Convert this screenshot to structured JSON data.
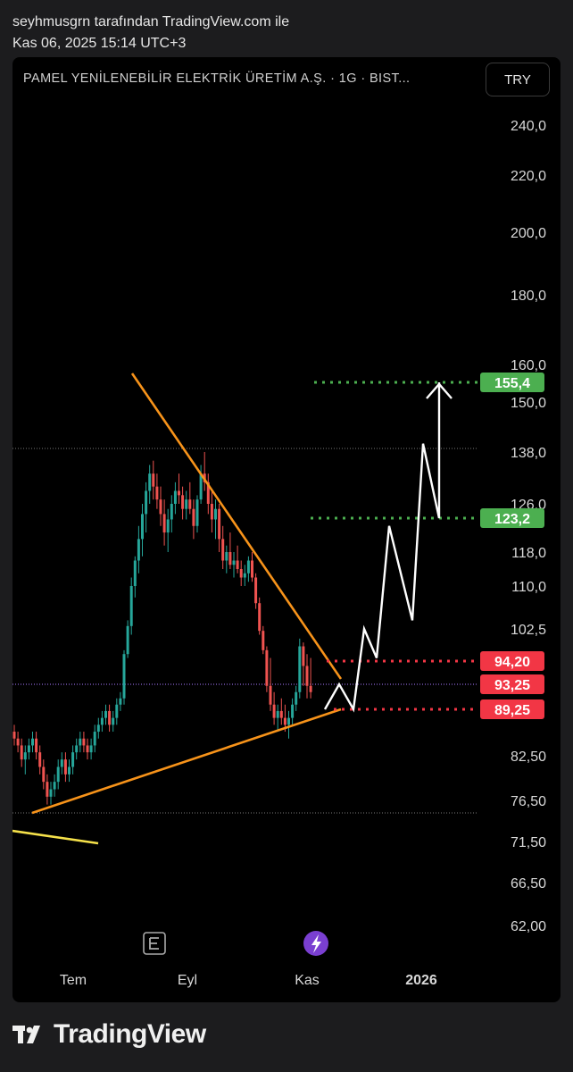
{
  "header": {
    "line1": "seyhmusgrn tarafından TradingView.com ile",
    "line2": "Kas 06, 2025 15:14 UTC+3"
  },
  "symbol_title": "PAMEL YENİLENEBİLİR ELEKTRİK ÜRETİM A.Ş. · 1G · BIST...",
  "currency": "TRY",
  "brand": "TradingView",
  "colors": {
    "background": "#000000",
    "up": "#26a69a",
    "down": "#ef5350",
    "trend": "#f7931a",
    "trend_low": "#f5e14a",
    "target": "#4caf50",
    "support": "#f23645",
    "projection": "#ffffff"
  },
  "chart_data": {
    "type": "candlestick",
    "interval": "1G",
    "x_ticks": [
      "Tem",
      "Eyl",
      "Kas",
      "2026"
    ],
    "y_ticks": [
      "240,0",
      "220,0",
      "200,0",
      "180,0",
      "160,0",
      "150,0",
      "138,0",
      "126,0",
      "118,0",
      "110,0",
      "102,5",
      "82,50",
      "76,50",
      "71,50",
      "66,50",
      "62,00"
    ],
    "price_labels": [
      {
        "value": 155.4,
        "label": "155,4",
        "color": "#4caf50"
      },
      {
        "value": 123.2,
        "label": "123,2",
        "color": "#4caf50"
      },
      {
        "value": 94.2,
        "label": "94,20",
        "color": "#f23645"
      },
      {
        "value": 93.25,
        "label": "93,25",
        "color": "#f23645"
      },
      {
        "value": 89.25,
        "label": "89,25",
        "color": "#f23645"
      }
    ],
    "ohlc_approx": [
      [
        86,
        87,
        84,
        85
      ],
      [
        85,
        86,
        83,
        84
      ],
      [
        84,
        85,
        81,
        82
      ],
      [
        82,
        84,
        80,
        83
      ],
      [
        83,
        85,
        82,
        84
      ],
      [
        84,
        86,
        83,
        85
      ],
      [
        85,
        86,
        82,
        83
      ],
      [
        83,
        84,
        80,
        81
      ],
      [
        81,
        82,
        78,
        79
      ],
      [
        79,
        80,
        76,
        77
      ],
      [
        77,
        79,
        76,
        78
      ],
      [
        78,
        80,
        77,
        79
      ],
      [
        79,
        82,
        78,
        81
      ],
      [
        81,
        83,
        80,
        82
      ],
      [
        82,
        83,
        79,
        80
      ],
      [
        80,
        82,
        79,
        81
      ],
      [
        81,
        84,
        80,
        83
      ],
      [
        83,
        85,
        82,
        84
      ],
      [
        84,
        86,
        83,
        85
      ],
      [
        85,
        86,
        83,
        84
      ],
      [
        84,
        85,
        82,
        83
      ],
      [
        83,
        85,
        82,
        84
      ],
      [
        84,
        87,
        83,
        86
      ],
      [
        86,
        88,
        85,
        87
      ],
      [
        87,
        89,
        86,
        88
      ],
      [
        88,
        90,
        87,
        89
      ],
      [
        89,
        90,
        86,
        87
      ],
      [
        87,
        89,
        86,
        88
      ],
      [
        88,
        91,
        87,
        90
      ],
      [
        90,
        92,
        89,
        91
      ],
      [
        91,
        97,
        90,
        96
      ],
      [
        96,
        104,
        95,
        103
      ],
      [
        103,
        112,
        101,
        110
      ],
      [
        110,
        117,
        108,
        116
      ],
      [
        116,
        122,
        113,
        120
      ],
      [
        120,
        126,
        117,
        124
      ],
      [
        124,
        131,
        121,
        129
      ],
      [
        129,
        135,
        126,
        133
      ],
      [
        133,
        136,
        127,
        130
      ],
      [
        130,
        133,
        125,
        127
      ],
      [
        127,
        130,
        122,
        124
      ],
      [
        124,
        127,
        119,
        121
      ],
      [
        121,
        125,
        118,
        123
      ],
      [
        123,
        128,
        121,
        126
      ],
      [
        126,
        131,
        124,
        129
      ],
      [
        129,
        133,
        126,
        128
      ],
      [
        128,
        130,
        123,
        125
      ],
      [
        125,
        129,
        123,
        127
      ],
      [
        127,
        131,
        124,
        125
      ],
      [
        125,
        127,
        120,
        122
      ],
      [
        122,
        128,
        121,
        127
      ],
      [
        127,
        135,
        126,
        133
      ],
      [
        133,
        138,
        129,
        131
      ],
      [
        131,
        133,
        124,
        126
      ],
      [
        126,
        129,
        121,
        123
      ],
      [
        123,
        127,
        120,
        125
      ],
      [
        125,
        126,
        118,
        120
      ],
      [
        120,
        122,
        114,
        116
      ],
      [
        116,
        119,
        113,
        118
      ],
      [
        118,
        121,
        114,
        115
      ],
      [
        115,
        118,
        112,
        116
      ],
      [
        116,
        119,
        113,
        114
      ],
      [
        114,
        116,
        110,
        112
      ],
      [
        112,
        115,
        110,
        113
      ],
      [
        113,
        117,
        111,
        116
      ],
      [
        116,
        118,
        111,
        112
      ],
      [
        112,
        113,
        106,
        107
      ],
      [
        107,
        108,
        101,
        102
      ],
      [
        102,
        103,
        96,
        97
      ],
      [
        97,
        98,
        92,
        93
      ],
      [
        93,
        95,
        89,
        90
      ],
      [
        90,
        92,
        87,
        88
      ],
      [
        88,
        90,
        86,
        89
      ],
      [
        89,
        91,
        87,
        88
      ],
      [
        88,
        90,
        86,
        87
      ],
      [
        87,
        89,
        85,
        88
      ],
      [
        88,
        91,
        87,
        90
      ],
      [
        90,
        93,
        89,
        92
      ],
      [
        92,
        100,
        91,
        98
      ],
      [
        98,
        99,
        93,
        94
      ],
      [
        94,
        96,
        91,
        93
      ],
      [
        93,
        95,
        91,
        92
      ]
    ],
    "trendlines": [
      {
        "name": "descending-resistance",
        "from": [
          "2025-08-07",
          147
        ],
        "to": [
          "2025-11-10",
          93.25
        ]
      },
      {
        "name": "ascending-support",
        "from": [
          "2025-07-03",
          74
        ],
        "to": [
          "2025-11-10",
          89.25
        ]
      },
      {
        "name": "lower-yellow-line",
        "from": [
          "2025-06-10",
          73
        ],
        "to": [
          "2025-07-20",
          71
        ]
      }
    ],
    "projection_path": [
      89.25,
      93.25,
      89.25,
      102.5,
      95,
      122,
      104,
      140,
      123.2,
      155.4
    ],
    "y_scale": "log",
    "ylim": [
      60,
      250
    ]
  }
}
